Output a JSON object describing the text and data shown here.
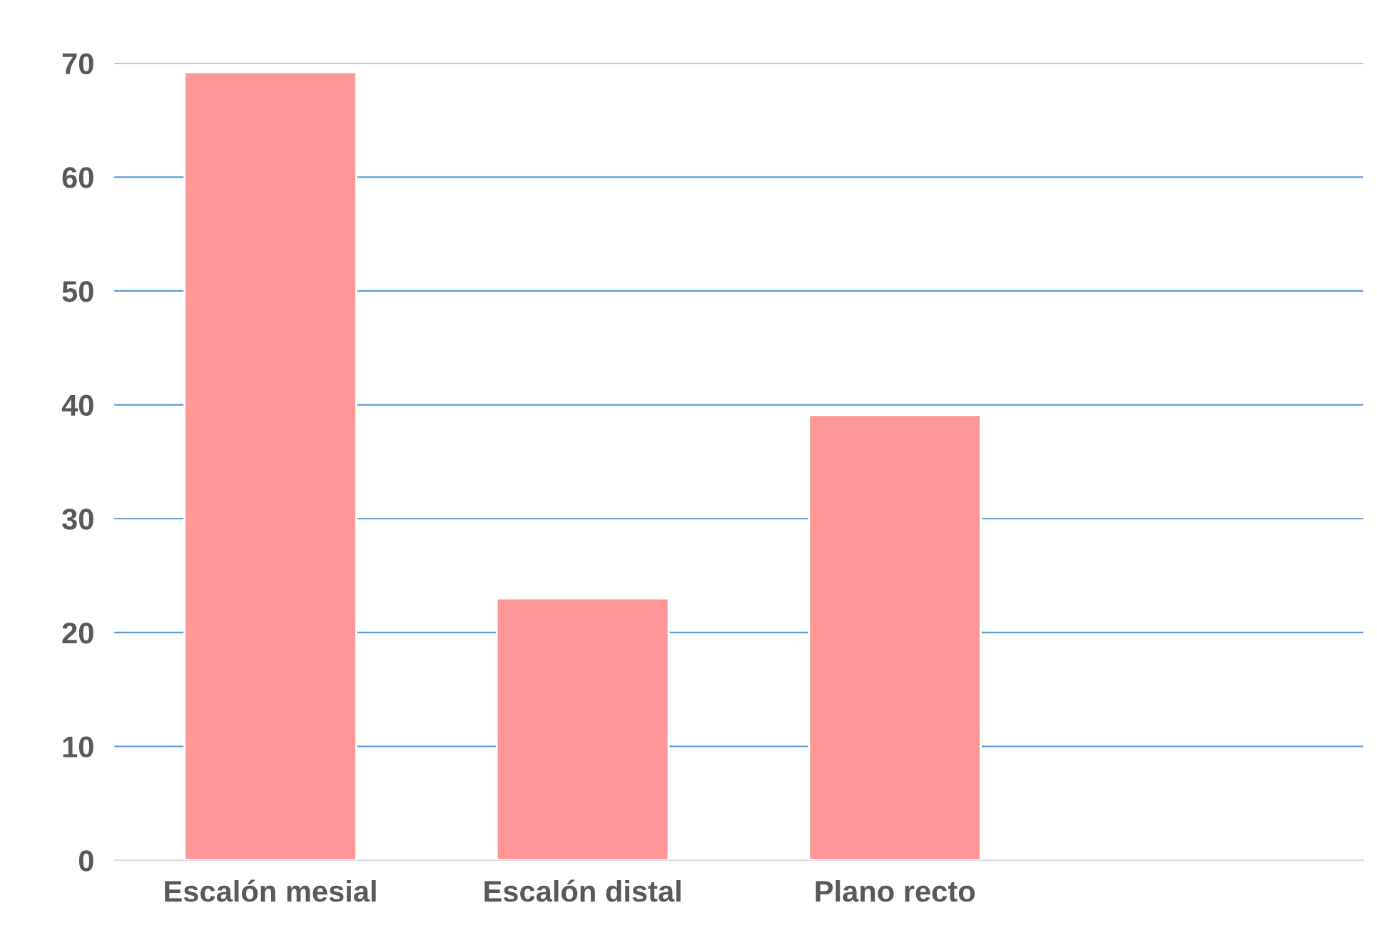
{
  "chart_data": {
    "type": "bar",
    "categories": [
      "Escalón mesial",
      "Escalón distal",
      "Plano recto",
      null
    ],
    "values": [
      69.2,
      23.0,
      39.1,
      null
    ],
    "color": "#ff9797",
    "ylim": [
      0,
      70
    ],
    "yticks": [
      0,
      10,
      20,
      30,
      40,
      50,
      60,
      70
    ],
    "grid": "y",
    "legend": false
  }
}
